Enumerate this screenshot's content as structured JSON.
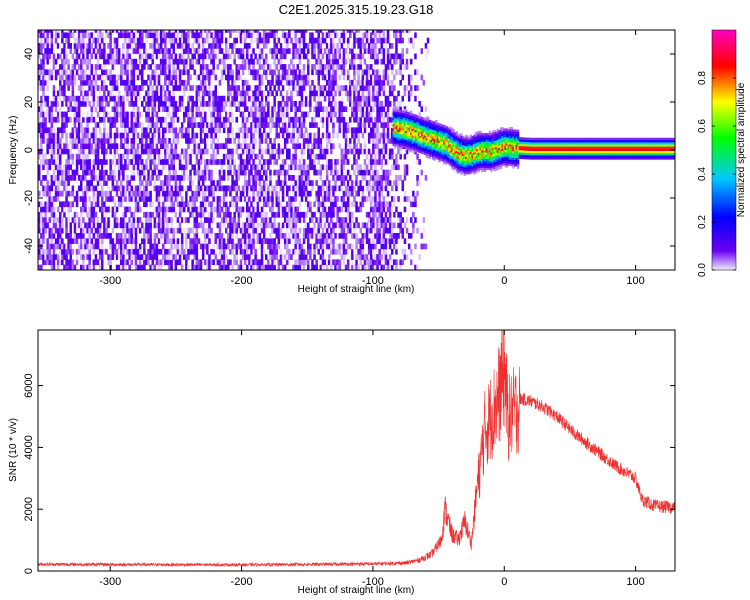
{
  "title": "C2E1.2025.315.19.23.G18",
  "chart_data": [
    {
      "type": "heatmap",
      "xlabel": "Height of straight line (km)",
      "ylabel": "Frequency (Hz)",
      "xlim": [
        -355,
        130
      ],
      "ylim": [
        -50,
        50
      ],
      "x_ticks": [
        -300,
        -200,
        -100,
        0,
        100
      ],
      "y_ticks": [
        -40,
        -20,
        0,
        20,
        40
      ],
      "colorbar": {
        "label": "Normalized spectral amplitude",
        "range": [
          0,
          1
        ],
        "ticks": [
          0.0,
          0.2,
          0.4,
          0.6,
          0.8
        ],
        "colors": [
          "#f0eafc",
          "#6a00f0",
          "#0000ff",
          "#00c8ff",
          "#00ff00",
          "#ffff00",
          "#ff0000",
          "#ff00c0"
        ]
      },
      "noise_region": {
        "x_range": [
          -355,
          -65
        ],
        "amplitude": 0.15
      },
      "signal_ridge": [
        {
          "x": -85,
          "y": 9
        },
        {
          "x": -75,
          "y": 8
        },
        {
          "x": -65,
          "y": 6
        },
        {
          "x": -55,
          "y": 4
        },
        {
          "x": -45,
          "y": 2
        },
        {
          "x": -35,
          "y": -2
        },
        {
          "x": -28,
          "y": -3
        },
        {
          "x": -20,
          "y": -1
        },
        {
          "x": -10,
          "y": -1
        },
        {
          "x": 0,
          "y": 1
        },
        {
          "x": 5,
          "y": 0.5
        },
        {
          "x": 20,
          "y": 0
        },
        {
          "x": 60,
          "y": 0
        },
        {
          "x": 100,
          "y": 0
        },
        {
          "x": 130,
          "y": 0
        }
      ]
    },
    {
      "type": "line",
      "xlabel": "Height of straight line (km)",
      "ylabel": "SNR (10 * v/v)",
      "xlim": [
        -355,
        130
      ],
      "ylim": [
        0,
        7800
      ],
      "x_ticks": [
        -300,
        -200,
        -100,
        0,
        100
      ],
      "y_ticks": [
        0,
        2000,
        4000,
        6000
      ],
      "series_color": "#ee3030",
      "envelope": [
        {
          "x": -355,
          "y": 220
        },
        {
          "x": -300,
          "y": 210
        },
        {
          "x": -200,
          "y": 200
        },
        {
          "x": -100,
          "y": 230
        },
        {
          "x": -75,
          "y": 260
        },
        {
          "x": -65,
          "y": 350
        },
        {
          "x": -55,
          "y": 550
        },
        {
          "x": -48,
          "y": 1000
        },
        {
          "x": -45,
          "y": 2000
        },
        {
          "x": -40,
          "y": 1200
        },
        {
          "x": -35,
          "y": 1000
        },
        {
          "x": -30,
          "y": 1600
        },
        {
          "x": -25,
          "y": 900
        },
        {
          "x": -20,
          "y": 3000
        },
        {
          "x": -15,
          "y": 4800
        },
        {
          "x": -8,
          "y": 5500
        },
        {
          "x": -3,
          "y": 6200
        },
        {
          "x": 0,
          "y": 7000
        },
        {
          "x": 3,
          "y": 5200
        },
        {
          "x": 10,
          "y": 5600
        },
        {
          "x": 20,
          "y": 5500
        },
        {
          "x": 30,
          "y": 5300
        },
        {
          "x": 40,
          "y": 5000
        },
        {
          "x": 55,
          "y": 4400
        },
        {
          "x": 70,
          "y": 3900
        },
        {
          "x": 85,
          "y": 3400
        },
        {
          "x": 100,
          "y": 3000
        },
        {
          "x": 105,
          "y": 2300
        },
        {
          "x": 115,
          "y": 2100
        },
        {
          "x": 130,
          "y": 2050
        }
      ]
    }
  ]
}
